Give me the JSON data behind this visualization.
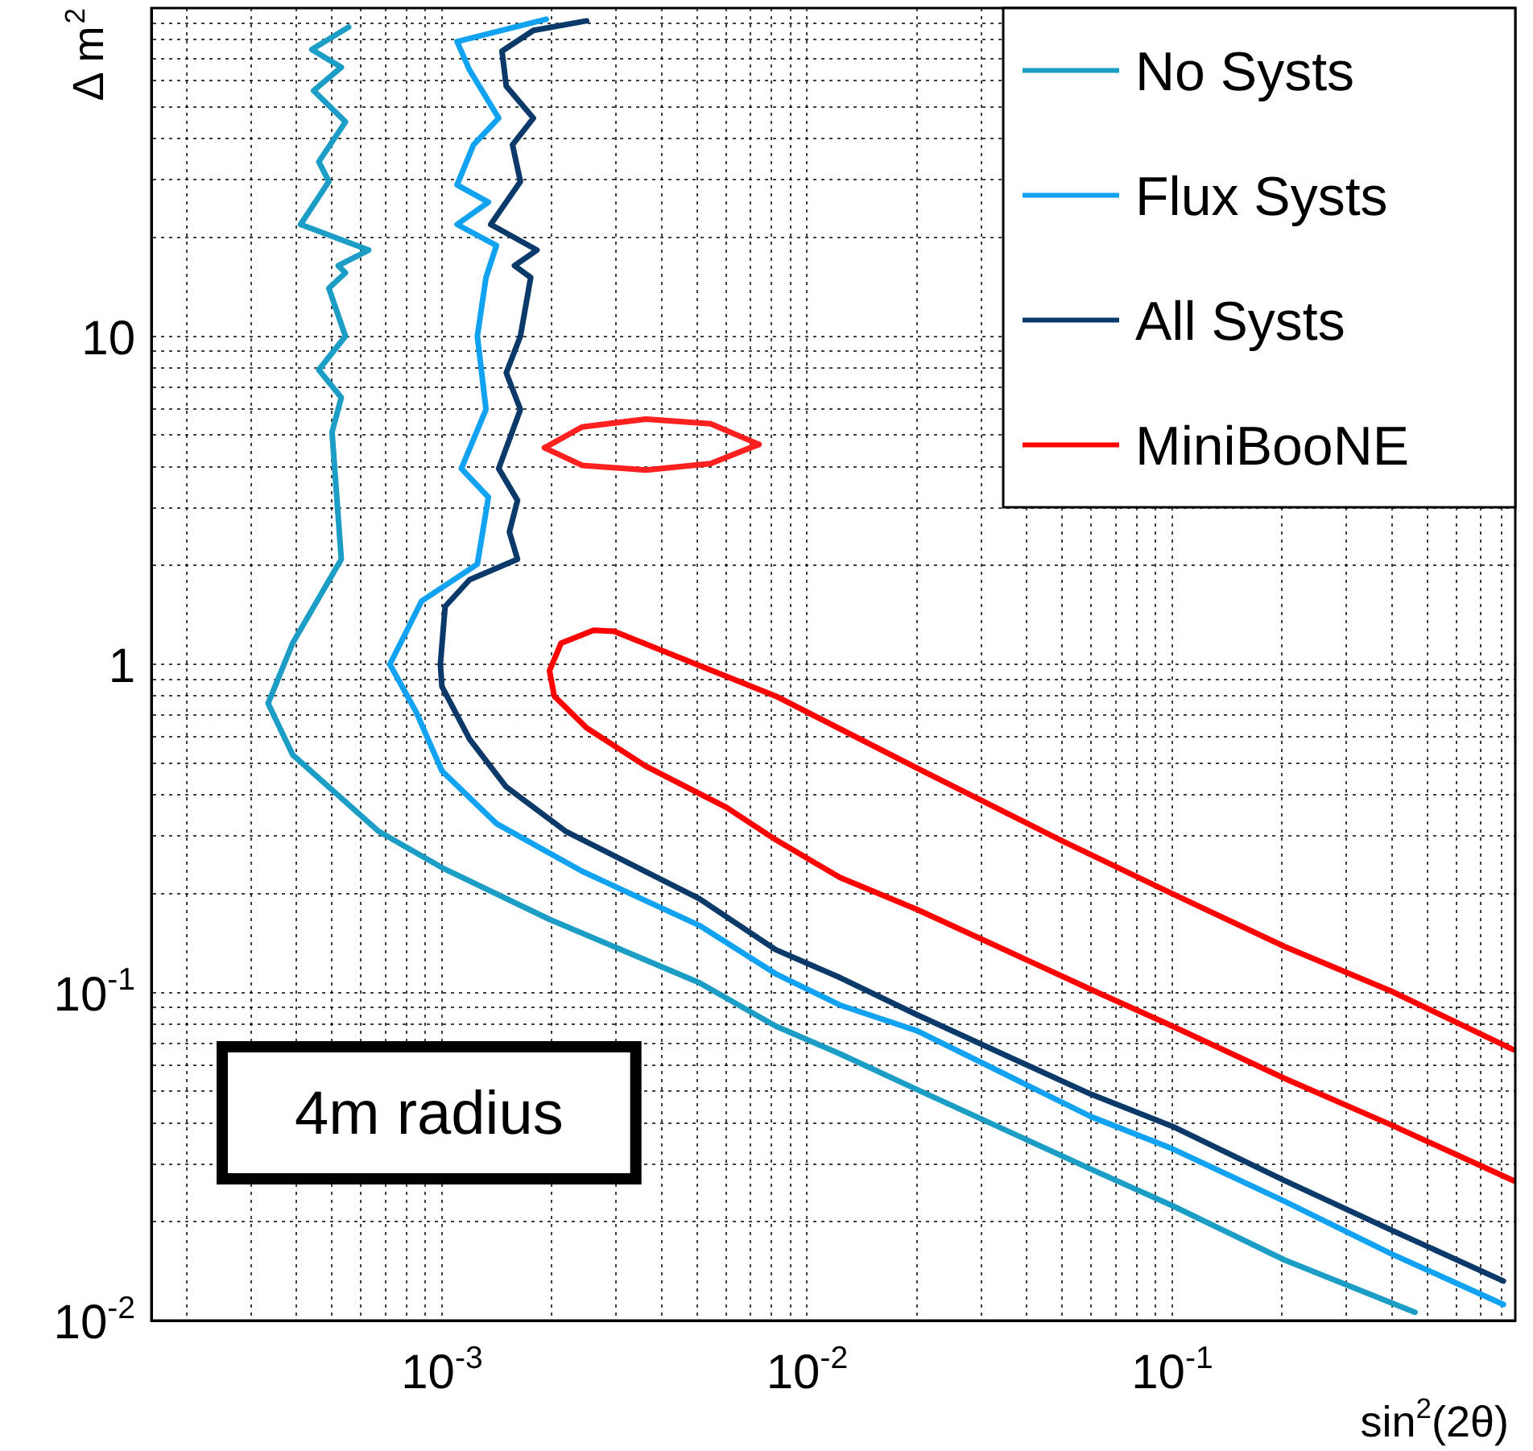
{
  "chart_data": {
    "type": "line",
    "xlabel": "sin$^{2}$(2θ)",
    "ylabel": "Δ m$^{2}$",
    "log": "xy",
    "grid": true,
    "legend": "top right",
    "annotations": [
      "4m radius"
    ],
    "xlim": [
      0.00016,
      0.87
    ],
    "ylim": [
      0.01,
      100
    ],
    "xticks": [
      {
        "value": 0.0002,
        "label": null
      },
      {
        "value": 0.0003,
        "label": null
      },
      {
        "value": 0.0004,
        "label": null
      },
      {
        "value": 0.0005,
        "label": null
      },
      {
        "value": 0.0006,
        "label": null
      },
      {
        "value": 0.0007,
        "label": null
      },
      {
        "value": 0.0008,
        "label": null
      },
      {
        "value": 0.0009,
        "label": null
      },
      {
        "value": 0.001,
        "label": "10$^{-3}$"
      },
      {
        "value": 0.002,
        "label": null
      },
      {
        "value": 0.003,
        "label": null
      },
      {
        "value": 0.004,
        "label": null
      },
      {
        "value": 0.005,
        "label": null
      },
      {
        "value": 0.006,
        "label": null
      },
      {
        "value": 0.007,
        "label": null
      },
      {
        "value": 0.008,
        "label": null
      },
      {
        "value": 0.009,
        "label": null
      },
      {
        "value": 0.01,
        "label": "10$^{-2}$"
      },
      {
        "value": 0.02,
        "label": null
      },
      {
        "value": 0.03,
        "label": null
      },
      {
        "value": 0.04,
        "label": null
      },
      {
        "value": 0.05,
        "label": null
      },
      {
        "value": 0.06,
        "label": null
      },
      {
        "value": 0.07,
        "label": null
      },
      {
        "value": 0.08,
        "label": null
      },
      {
        "value": 0.09,
        "label": null
      },
      {
        "value": 0.1,
        "label": "10$^{-1}$"
      },
      {
        "value": 0.2,
        "label": null
      },
      {
        "value": 0.3,
        "label": null
      },
      {
        "value": 0.4,
        "label": null
      },
      {
        "value": 0.5,
        "label": null
      },
      {
        "value": 0.6,
        "label": null
      },
      {
        "value": 0.7,
        "label": null
      },
      {
        "value": 0.8,
        "label": null
      }
    ],
    "yticks": [
      {
        "value": 0.01,
        "label": "10$^{-2}$"
      },
      {
        "value": 0.02,
        "label": null
      },
      {
        "value": 0.03,
        "label": null
      },
      {
        "value": 0.04,
        "label": null
      },
      {
        "value": 0.05,
        "label": null
      },
      {
        "value": 0.06,
        "label": null
      },
      {
        "value": 0.07,
        "label": null
      },
      {
        "value": 0.08,
        "label": null
      },
      {
        "value": 0.09,
        "label": null
      },
      {
        "value": 0.1,
        "label": "10$^{-1}$"
      },
      {
        "value": 0.2,
        "label": null
      },
      {
        "value": 0.3,
        "label": null
      },
      {
        "value": 0.4,
        "label": null
      },
      {
        "value": 0.5,
        "label": null
      },
      {
        "value": 0.6,
        "label": null
      },
      {
        "value": 0.7,
        "label": null
      },
      {
        "value": 0.8,
        "label": null
      },
      {
        "value": 0.9,
        "label": null
      },
      1,
      {
        "value": 2,
        "label": null
      },
      {
        "value": 3,
        "label": null
      },
      {
        "value": 4,
        "label": null
      },
      {
        "value": 5,
        "label": null
      },
      {
        "value": 6,
        "label": null
      },
      {
        "value": 7,
        "label": null
      },
      {
        "value": 8,
        "label": null
      },
      {
        "value": 9,
        "label": null
      },
      10,
      {
        "value": 20,
        "label": null
      },
      {
        "value": 30,
        "label": null
      },
      {
        "value": 40,
        "label": null
      },
      {
        "value": 50,
        "label": null
      },
      {
        "value": 60,
        "label": null
      },
      {
        "value": 70,
        "label": null
      },
      {
        "value": 80,
        "label": null
      },
      {
        "value": 90,
        "label": null
      }
    ],
    "series": [
      {
        "name": "No Systs",
        "color": "#1b9dc6",
        "x": [
          0.000555,
          0.00044,
          0.00053,
          0.000445,
          0.000544,
          0.00046,
          0.00049,
          0.00041,
          0.00063,
          0.00052,
          0.000544,
          0.00049,
          0.000544,
          0.00046,
          0.00053,
          0.0005,
          0.00053,
          0.00039,
          0.000334,
          0.00039,
          0.00067,
          0.001,
          0.00197,
          0.00507,
          0.0082,
          0.0123,
          0.02,
          0.06,
          0.1,
          0.203,
          0.462
        ],
        "values": [
          87.5,
          74.8,
          66,
          56,
          45,
          34,
          29.6,
          21.9,
          18.3,
          16.4,
          15.6,
          14,
          10,
          7.9,
          6.5,
          5.1,
          2.09,
          1.16,
          0.76,
          0.53,
          0.31,
          0.24,
          0.167,
          0.107,
          0.079,
          0.065,
          0.0506,
          0.0289,
          0.0224,
          0.0153,
          0.0106
        ]
      },
      {
        "name": "Flux Systs",
        "color": "#12a2f2",
        "x": [
          0.00193,
          0.0011,
          0.00119,
          0.00143,
          0.00122,
          0.0011,
          0.00134,
          0.0011,
          0.00141,
          0.00132,
          0.00125,
          0.00132,
          0.00113,
          0.00134,
          0.00125,
          0.00088,
          0.00072,
          0.00085,
          0.001,
          0.00141,
          0.00242,
          0.00507,
          0.0082,
          0.0123,
          0.02,
          0.06,
          0.1,
          0.203,
          0.397,
          0.807
        ],
        "values": [
          92.5,
          79,
          64.7,
          46.2,
          38.3,
          28.9,
          25.6,
          21.9,
          18.9,
          15.1,
          10,
          5.98,
          3.95,
          3.23,
          2.02,
          1.56,
          1,
          0.715,
          0.473,
          0.327,
          0.234,
          0.16,
          0.114,
          0.0915,
          0.0764,
          0.0418,
          0.0334,
          0.0231,
          0.016,
          0.0112
        ]
      },
      {
        "name": "All Systs",
        "color": "#0b3a6a",
        "x": [
          0.00249,
          0.00178,
          0.00146,
          0.0015,
          0.00178,
          0.00156,
          0.00164,
          0.00136,
          0.00182,
          0.00158,
          0.00175,
          0.00164,
          0.0015,
          0.00164,
          0.00143,
          0.00161,
          0.00153,
          0.00161,
          0.00119,
          0.00102,
          0.00099,
          0.001,
          0.00119,
          0.0015,
          0.00218,
          0.00507,
          0.0082,
          0.0123,
          0.02,
          0.06,
          0.1,
          0.203,
          0.397,
          0.807
        ],
        "values": [
          91.4,
          85.5,
          73.9,
          57.8,
          46.2,
          38.3,
          29.6,
          21.9,
          18.3,
          16.4,
          15.1,
          10,
          7.73,
          5.98,
          3.95,
          3.16,
          2.53,
          2.09,
          1.81,
          1.5,
          1,
          0.855,
          0.592,
          0.423,
          0.31,
          0.193,
          0.135,
          0.111,
          0.0855,
          0.0489,
          0.0391,
          0.0267,
          0.0189,
          0.0132
        ]
      },
      {
        "color": "#ff2020",
        "x": [
          0.00191,
          0.00242,
          0.00362,
          0.00544,
          0.00738
        ],
        "values": [
          4.57,
          5.29,
          5.59,
          5.41,
          4.68
        ]
      },
      {
        "color": "#ff2020",
        "x": [
          0.00191,
          0.00242,
          0.00362,
          0.00544,
          0.00738
        ],
        "values": [
          4.57,
          4.04,
          3.91,
          4.09,
          4.68
        ]
      },
      {
        "name": "MiniBooNE",
        "color": "#ff0000",
        "x": [
          0.86,
          0.397,
          0.203,
          0.1,
          0.0492,
          0.02,
          0.0082,
          0.00296,
          0.0026,
          0.00212,
          0.00197,
          0.00203,
          0.00249,
          0.00362,
          0.00602,
          0.0082,
          0.0123,
          0.02,
          0.06,
          0.1,
          0.203,
          0.397,
          0.86
        ],
        "values": [
          0.0669,
          0.101,
          0.138,
          0.2,
          0.292,
          0.483,
          0.8,
          1.26,
          1.27,
          1.16,
          0.956,
          0.8,
          0.64,
          0.489,
          0.366,
          0.292,
          0.224,
          0.179,
          0.102,
          0.079,
          0.0547,
          0.0395,
          0.0267
        ]
      }
    ]
  }
}
